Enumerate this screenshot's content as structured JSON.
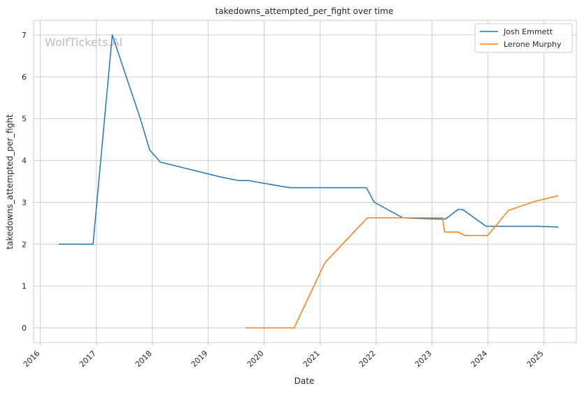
{
  "chart_data": {
    "type": "line",
    "title": "takedowns_attempted_per_fight over time",
    "xlabel": "Date",
    "ylabel": "takedowns_attempted_per_fight",
    "watermark": "WolfTickets.AI",
    "x_ticks": [
      "2016",
      "2017",
      "2018",
      "2019",
      "2020",
      "2021",
      "2022",
      "2023",
      "2024",
      "2025"
    ],
    "y_ticks": [
      0,
      1,
      2,
      3,
      4,
      5,
      6,
      7
    ],
    "xlim": [
      "2015-11-18",
      "2025-08-01"
    ],
    "ylim": [
      -0.35,
      7.35
    ],
    "grid": true,
    "legend_position": "top-right",
    "series": [
      {
        "name": "Josh Emmett",
        "color": "#1f77b4",
        "points": [
          [
            "2016-05-01",
            2.0
          ],
          [
            "2016-12-10",
            2.0
          ],
          [
            "2017-04-15",
            7.0
          ],
          [
            "2017-10-15",
            5.0
          ],
          [
            "2017-12-15",
            4.25
          ],
          [
            "2018-02-24",
            3.96
          ],
          [
            "2019-03-30",
            3.6
          ],
          [
            "2019-07-20",
            3.52
          ],
          [
            "2019-09-20",
            3.52
          ],
          [
            "2020-06-15",
            3.35
          ],
          [
            "2021-10-30",
            3.35
          ],
          [
            "2021-12-20",
            3.0
          ],
          [
            "2022-06-25",
            2.63
          ],
          [
            "2023-02-01",
            2.6
          ],
          [
            "2023-03-30",
            2.6
          ],
          [
            "2023-06-20",
            2.83
          ],
          [
            "2023-07-20",
            2.83
          ],
          [
            "2023-12-20",
            2.43
          ],
          [
            "2024-11-15",
            2.43
          ],
          [
            "2025-04-05",
            2.41
          ]
        ]
      },
      {
        "name": "Lerone Murphy",
        "color": "#ff7f0e",
        "points": [
          [
            "2019-09-01",
            0.0
          ],
          [
            "2020-07-15",
            0.0
          ],
          [
            "2021-02-01",
            1.56
          ],
          [
            "2021-11-05",
            2.63
          ],
          [
            "2023-03-10",
            2.63
          ],
          [
            "2023-03-25",
            2.29
          ],
          [
            "2023-06-20",
            2.29
          ],
          [
            "2023-08-01",
            2.21
          ],
          [
            "2023-12-31",
            2.21
          ],
          [
            "2024-05-15",
            2.81
          ],
          [
            "2024-11-01",
            3.02
          ],
          [
            "2025-04-05",
            3.16
          ]
        ]
      }
    ]
  }
}
